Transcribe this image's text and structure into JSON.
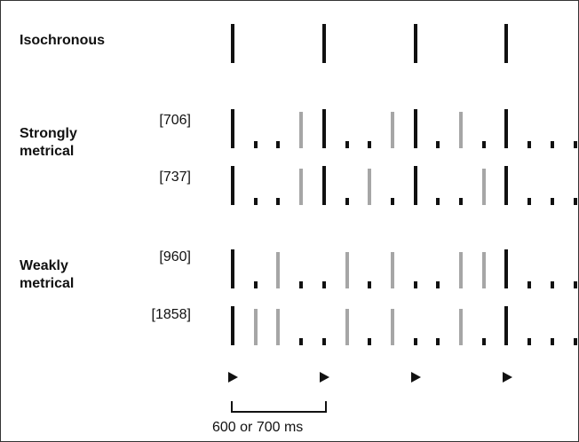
{
  "labels": {
    "isochronous": "Isochronous",
    "strongly_metrical": "Strongly\nmetrical",
    "weakly_metrical": "Weakly\nmetrical",
    "interval": "600 or 700 ms"
  },
  "colors": {
    "loud": "#111111",
    "medium": "#a6a6a6",
    "soft": "#111111"
  },
  "rows": [
    {
      "code": "",
      "pattern": "L...L...L...L..."
    },
    {
      "code": "[706]",
      "pattern": "LssMLssMLsMsLsss"
    },
    {
      "code": "[737]",
      "pattern": "LssMLsMsLssMLsss"
    },
    {
      "code": "[960]",
      "pattern": "LsMssMsMssMMLsss"
    },
    {
      "code": "[1858]",
      "pattern": "LMMssMsMssMsLsss"
    }
  ],
  "beat_markers": [
    "beat",
    "beat",
    "beat",
    "beat"
  ]
}
